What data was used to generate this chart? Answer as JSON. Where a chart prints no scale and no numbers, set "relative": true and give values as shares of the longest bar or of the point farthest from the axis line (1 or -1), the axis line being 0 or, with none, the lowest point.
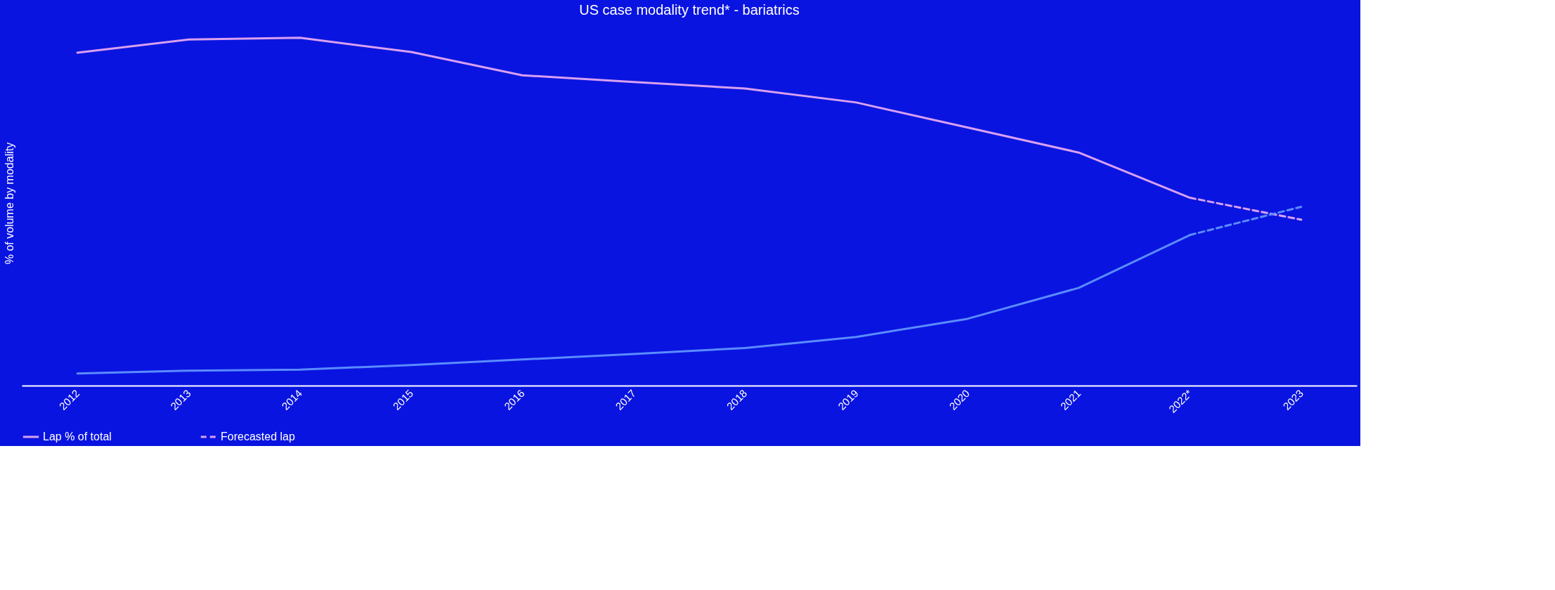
{
  "chart_data": {
    "type": "line",
    "title": "US case modality trend* - bariatrics",
    "ylabel": "% of volume by modality",
    "relative": true,
    "grid": false,
    "legend": "bottom",
    "marker": "none",
    "categories": [
      "2012",
      "2013",
      "2014",
      "2015",
      "2016",
      "2017",
      "2018",
      "2019",
      "2020",
      "2021",
      "2022*",
      "2023"
    ],
    "series": [
      {
        "name": "Lap % of total",
        "color": "#d9a0f0",
        "line_style": "solid",
        "values": [
          0.957,
          0.995,
          1,
          0.959,
          0.892,
          0.873,
          0.854,
          0.814,
          0.742,
          0.67,
          0.54,
          null
        ]
      },
      {
        "color": "#5a8cff",
        "line_style": "solid",
        "values": [
          0.035,
          0.043,
          0.046,
          0.059,
          0.075,
          0.091,
          0.108,
          0.14,
          0.192,
          0.281,
          0.433,
          null
        ]
      },
      {
        "name": "Forecasted lap",
        "color": "#d9a0f0",
        "line_style": "dashed",
        "values": [
          null,
          null,
          null,
          null,
          null,
          null,
          null,
          null,
          null,
          null,
          0.54,
          0.477
        ]
      },
      {
        "color": "#5a8cff",
        "line_style": "dashed",
        "values": [
          null,
          null,
          null,
          null,
          null,
          null,
          null,
          null,
          null,
          null,
          0.433,
          0.514
        ]
      }
    ]
  }
}
